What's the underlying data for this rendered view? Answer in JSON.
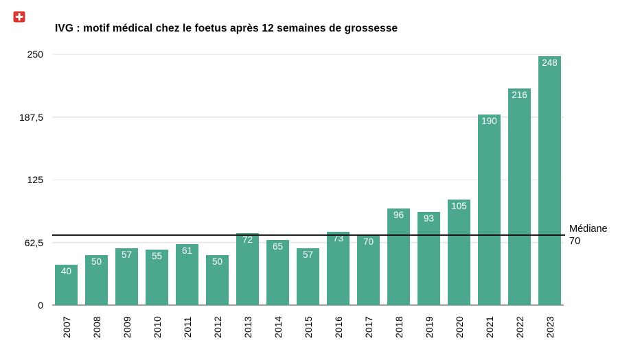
{
  "chart_data": {
    "type": "bar",
    "title": "IVG : motif médical chez le foetus après 12 semaines de grossesse",
    "categories": [
      "2007",
      "2008",
      "2009",
      "2010",
      "2011",
      "2012",
      "2013",
      "2014",
      "2015",
      "2016",
      "2017",
      "2018",
      "2019",
      "2020",
      "2021",
      "2022",
      "2023"
    ],
    "values": [
      40,
      50,
      57,
      55,
      61,
      50,
      72,
      65,
      57,
      73,
      70,
      96,
      93,
      105,
      190,
      216,
      248
    ],
    "xlabel": "",
    "ylabel": "",
    "ylim": [
      0,
      250
    ],
    "yticks": [
      {
        "value": 0,
        "label": "0"
      },
      {
        "value": 62.5,
        "label": "62,5"
      },
      {
        "value": 125,
        "label": "125"
      },
      {
        "value": 187.5,
        "label": "187,5"
      },
      {
        "value": 250,
        "label": "250"
      }
    ],
    "grid": true,
    "legend": false,
    "bar_labels_position": "inside-top",
    "median_line": {
      "value": 70,
      "label": "Médiane",
      "value_label": "70",
      "color": "#000000"
    },
    "colors": {
      "bar": "#4ba88e",
      "bar_label_text": "#ffffff",
      "gridline": "#e8e8e8",
      "axis_line": "#9a9a9a",
      "text": "#000000",
      "background": "#ffffff"
    }
  },
  "icons": {
    "flag": "swiss-flag"
  }
}
